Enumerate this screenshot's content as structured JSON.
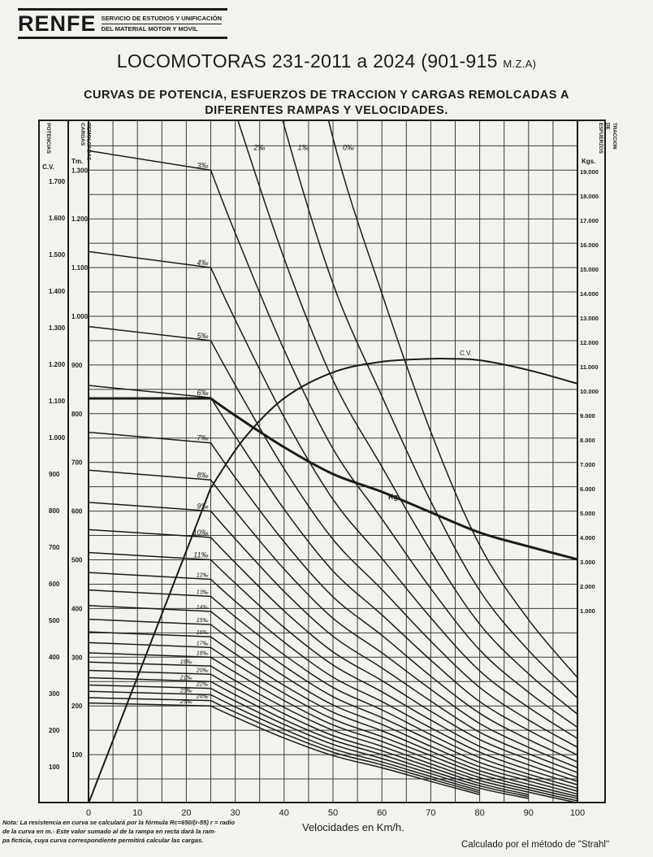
{
  "header": {
    "logo_text": "RENFE",
    "logo_sub_line1": "SERVICIO DE ESTUDIOS Y UNIFICACIÓN",
    "logo_sub_line2": "DEL MATERIAL MOTOR Y MOVIL",
    "title": "LOCOMOTORAS 231-2011 a 2024 (901-915 ",
    "title_suffix": "M.Z.A)",
    "subtitle_line1": "CURVAS DE POTENCIA, ESFUERZOS DE TRACCION Y CARGAS REMOLCADAS A",
    "subtitle_line2": "DIFERENTES RAMPAS Y VELOCIDADES."
  },
  "footer": {
    "note_line1": "Nota: La resistencia en curva se calculará por la fórmula Rc=650/(r-55) r = radio",
    "note_line2": "de la curva en m.- Este valor sumado al de la rampa en recta dará la ram-",
    "note_line3": "pa ficticia, cuya curva correspondiente permitirá calcular las cargas.",
    "credit": "Calculado por el método de \"Strahl\""
  },
  "chart_data": {
    "type": "line",
    "xlabel": "Velocidades en Km/h.",
    "xlim": [
      0,
      100
    ],
    "x_ticks": [
      0,
      10,
      20,
      30,
      40,
      50,
      60,
      70,
      80,
      90,
      100
    ],
    "grid": true,
    "ink_color": "#1b1b1b",
    "axes": {
      "cv": {
        "header": "POTENCIAS",
        "unit": "C.V.",
        "ticks": [
          100,
          200,
          300,
          400,
          500,
          600,
          700,
          800,
          900,
          1000,
          1100,
          1200,
          1300,
          1400,
          1500,
          1600,
          1700
        ],
        "tick_labels": [
          "100",
          "200",
          "300",
          "400",
          "500",
          "600",
          "700",
          "800",
          "900",
          "1.000",
          "1.100",
          "1.200",
          "1.300",
          "1.400",
          "1.500",
          "1.600",
          "1.700"
        ]
      },
      "tm": {
        "header": "CARGAS REMOLCADAS",
        "unit": "Tm.",
        "ylim": [
          0,
          1400
        ],
        "ticks": [
          100,
          200,
          300,
          400,
          500,
          600,
          700,
          800,
          900,
          1000,
          1100,
          1200,
          1300
        ],
        "tick_labels": [
          "100",
          "200",
          "300",
          "400",
          "500",
          "600",
          "700",
          "800",
          "900",
          "1.000",
          "1.100",
          "1.200",
          "1.300"
        ]
      },
      "kg": {
        "header": "ESFUERZOS DE TRACCION",
        "unit": "Kgs.",
        "ticks": [
          1000,
          2000,
          3000,
          4000,
          5000,
          6000,
          7000,
          8000,
          9000,
          10000,
          11000,
          12000,
          13000,
          14000,
          15000,
          16000,
          17000,
          18000,
          19000
        ],
        "tick_labels": [
          "1.000",
          "2.000",
          "3.000",
          "4.000",
          "5.000",
          "6.000",
          "7.000",
          "8.000",
          "9.000",
          "10.000",
          "11.000",
          "12.000",
          "13.000",
          "14.000",
          "15.000",
          "16.000",
          "17.000",
          "18.000",
          "19.000"
        ]
      }
    },
    "power_curve": {
      "name": "C.V.",
      "axis": "cv",
      "x": [
        0,
        25,
        31.7,
        40,
        50,
        60,
        70,
        74,
        80,
        90,
        100
      ],
      "y": [
        0,
        862,
        995,
        1107,
        1178,
        1207,
        1215,
        1215,
        1211,
        1184,
        1147
      ]
    },
    "tractive_effort_curve": {
      "name": "Kg.",
      "axis": "kg",
      "x": [
        0,
        25,
        30,
        40,
        50,
        60,
        70,
        80,
        90,
        100
      ],
      "y": [
        9700,
        9700,
        9000,
        7700,
        6600,
        5870,
        5030,
        4200,
        3630,
        3100
      ]
    },
    "ramp_curves_axis": "tm",
    "ramp_curves": [
      {
        "label": "0‰",
        "x": [
          30,
          40,
          50,
          60,
          70,
          80,
          90,
          100
        ],
        "y": [
          2390,
          1822,
          1366,
          1047,
          763,
          530,
          377,
          258
        ]
      },
      {
        "label": "1‰",
        "x": [
          30,
          40,
          50,
          60,
          70,
          80,
          90,
          100
        ],
        "y": [
          1787,
          1392,
          1067,
          836,
          620,
          437,
          314,
          216
        ]
      },
      {
        "label": "2‰",
        "x": [
          30,
          40,
          50,
          60,
          70,
          80,
          90,
          100
        ],
        "y": [
          1419,
          1119,
          869,
          691,
          518,
          368,
          266,
          183
        ]
      },
      {
        "label": "3‰",
        "x": [
          0,
          25,
          30,
          40,
          50,
          60,
          70,
          80,
          90,
          100
        ],
        "y": [
          1340,
          1300,
          1171,
          931,
          728,
          584,
          441,
          315,
          228,
          156
        ]
      },
      {
        "label": "4‰",
        "x": [
          0,
          25,
          30,
          40,
          50,
          60,
          70,
          80,
          90,
          100
        ],
        "y": [
          1133,
          1100,
          993,
          793,
          624,
          503,
          381,
          272,
          197,
          133
        ]
      },
      {
        "label": "5‰",
        "x": [
          0,
          25,
          30,
          40,
          50,
          60,
          70,
          80,
          90,
          100
        ],
        "y": [
          979,
          950,
          859,
          687,
          542,
          439,
          333,
          238,
          171,
          115
        ]
      },
      {
        "label": "6‰",
        "x": [
          0,
          25,
          30,
          40,
          50,
          60,
          70,
          80,
          90,
          100
        ],
        "y": [
          858,
          833,
          754,
          604,
          477,
          387,
          294,
          209,
          150,
          99
        ]
      },
      {
        "label": "7‰",
        "x": [
          0,
          25,
          30,
          40,
          50,
          60,
          70,
          80,
          90,
          100
        ],
        "y": [
          762,
          740,
          669,
          537,
          424,
          345,
          261,
          185,
          131,
          85
        ]
      },
      {
        "label": "8‰",
        "x": [
          0,
          25,
          30,
          40,
          50,
          60,
          70,
          80,
          90,
          100
        ],
        "y": [
          684,
          664,
          600,
          481,
          380,
          309,
          234,
          164,
          115,
          73
        ]
      },
      {
        "label": "9‰",
        "x": [
          0,
          25,
          30,
          40,
          50,
          60,
          70,
          80,
          90,
          100
        ],
        "y": [
          618,
          600,
          543,
          435,
          343,
          278,
          210,
          146,
          102,
          63
        ]
      },
      {
        "label": "10‰",
        "x": [
          0,
          25,
          30,
          40,
          50,
          60,
          70,
          80,
          90,
          100
        ],
        "y": [
          562,
          546,
          494,
          395,
          311,
          252,
          189,
          131,
          90,
          53
        ]
      },
      {
        "label": "11‰",
        "x": [
          0,
          25,
          30,
          40,
          50,
          60,
          70,
          80,
          90,
          100
        ],
        "y": [
          515,
          500,
          452,
          361,
          284,
          229,
          171,
          117,
          79,
          45
        ]
      },
      {
        "label": "12‰",
        "x": [
          0,
          25,
          30,
          40,
          50,
          60,
          70,
          80,
          90,
          100
        ],
        "y": [
          474,
          460,
          415,
          331,
          259,
          209,
          155,
          105,
          69,
          38
        ]
      },
      {
        "label": "13‰",
        "x": [
          0,
          25,
          30,
          40,
          50,
          60,
          70,
          80,
          90,
          100
        ],
        "y": [
          438,
          425,
          383,
          305,
          238,
          192,
          141,
          94,
          60,
          31
        ]
      },
      {
        "label": "14‰",
        "x": [
          0,
          25,
          30,
          40,
          50,
          60,
          70,
          80,
          90,
          100
        ],
        "y": [
          406,
          394,
          355,
          282,
          219,
          176,
          129,
          84,
          53,
          25
        ]
      },
      {
        "label": "15‰",
        "x": [
          0,
          25,
          30,
          40,
          50,
          60,
          70,
          80,
          90,
          100
        ],
        "y": [
          378,
          367,
          330,
          261,
          202,
          162,
          117,
          75,
          46,
          19
        ]
      },
      {
        "label": "16‰",
        "x": [
          0,
          25,
          30,
          40,
          50,
          60,
          70,
          80,
          90,
          100
        ],
        "y": [
          352,
          342,
          307,
          242,
          187,
          149,
          107,
          67,
          39,
          14
        ]
      },
      {
        "label": "17‰",
        "x": [
          0,
          25,
          30,
          40,
          50,
          60,
          70,
          80,
          90,
          100
        ],
        "y": [
          330,
          320,
          287,
          226,
          173,
          137,
          98,
          60,
          33,
          10
        ]
      },
      {
        "label": "18‰",
        "x": [
          0,
          25,
          30,
          40,
          50,
          60,
          70,
          80,
          90,
          100
        ],
        "y": [
          309,
          300,
          269,
          211,
          161,
          127,
          89,
          53,
          28,
          5
        ]
      },
      {
        "label": "19‰",
        "x": [
          0,
          25,
          30,
          40,
          50,
          60,
          70,
          80,
          90,
          100
        ],
        "y": [
          290,
          282,
          252,
          197,
          150,
          117,
          81,
          47,
          23,
          1
        ]
      },
      {
        "label": "20‰",
        "x": [
          0,
          25,
          30,
          40,
          50,
          60,
          70,
          80,
          90
        ],
        "y": [
          273,
          265,
          237,
          184,
          139,
          108,
          74,
          41,
          18
        ]
      },
      {
        "label": "21‰",
        "x": [
          0,
          25,
          30,
          40,
          50,
          60,
          70,
          80,
          90
        ],
        "y": [
          258,
          250,
          223,
          172,
          130,
          100,
          67,
          36,
          14
        ]
      },
      {
        "label": "22‰",
        "x": [
          0,
          25,
          30,
          40,
          50,
          60,
          70,
          80,
          90
        ],
        "y": [
          243,
          236,
          210,
          162,
          121,
          92,
          61,
          31,
          10
        ]
      },
      {
        "label": "23‰",
        "x": [
          0,
          25,
          30,
          40,
          50,
          60,
          70,
          80
        ],
        "y": [
          230,
          223,
          198,
          152,
          112,
          85,
          55,
          26
        ]
      },
      {
        "label": "24‰",
        "x": [
          0,
          25,
          30,
          40,
          50,
          60,
          70,
          80
        ],
        "y": [
          217,
          211,
          187,
          143,
          105,
          79,
          50,
          22
        ]
      },
      {
        "label": "25‰",
        "x": [
          0,
          25,
          30,
          40,
          50,
          60,
          70,
          80
        ],
        "y": [
          206,
          200,
          177,
          134,
          98,
          73,
          45,
          18
        ]
      }
    ]
  }
}
